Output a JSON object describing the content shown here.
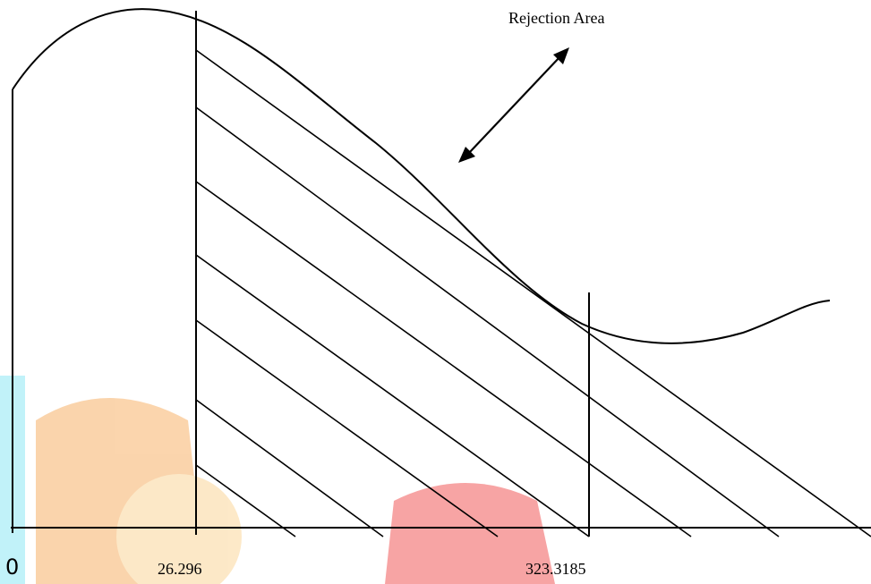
{
  "diagram": {
    "annotation": "Rejection Area",
    "axis_labels": {
      "origin": "0",
      "critical_value": "26.296",
      "test_statistic": "323.3185"
    }
  },
  "watermark": {
    "description_colors": {
      "cyan_bar": "#8fe8f5",
      "orange_shape": "#f7b26a",
      "red_shape": "#f05a5a"
    }
  }
}
